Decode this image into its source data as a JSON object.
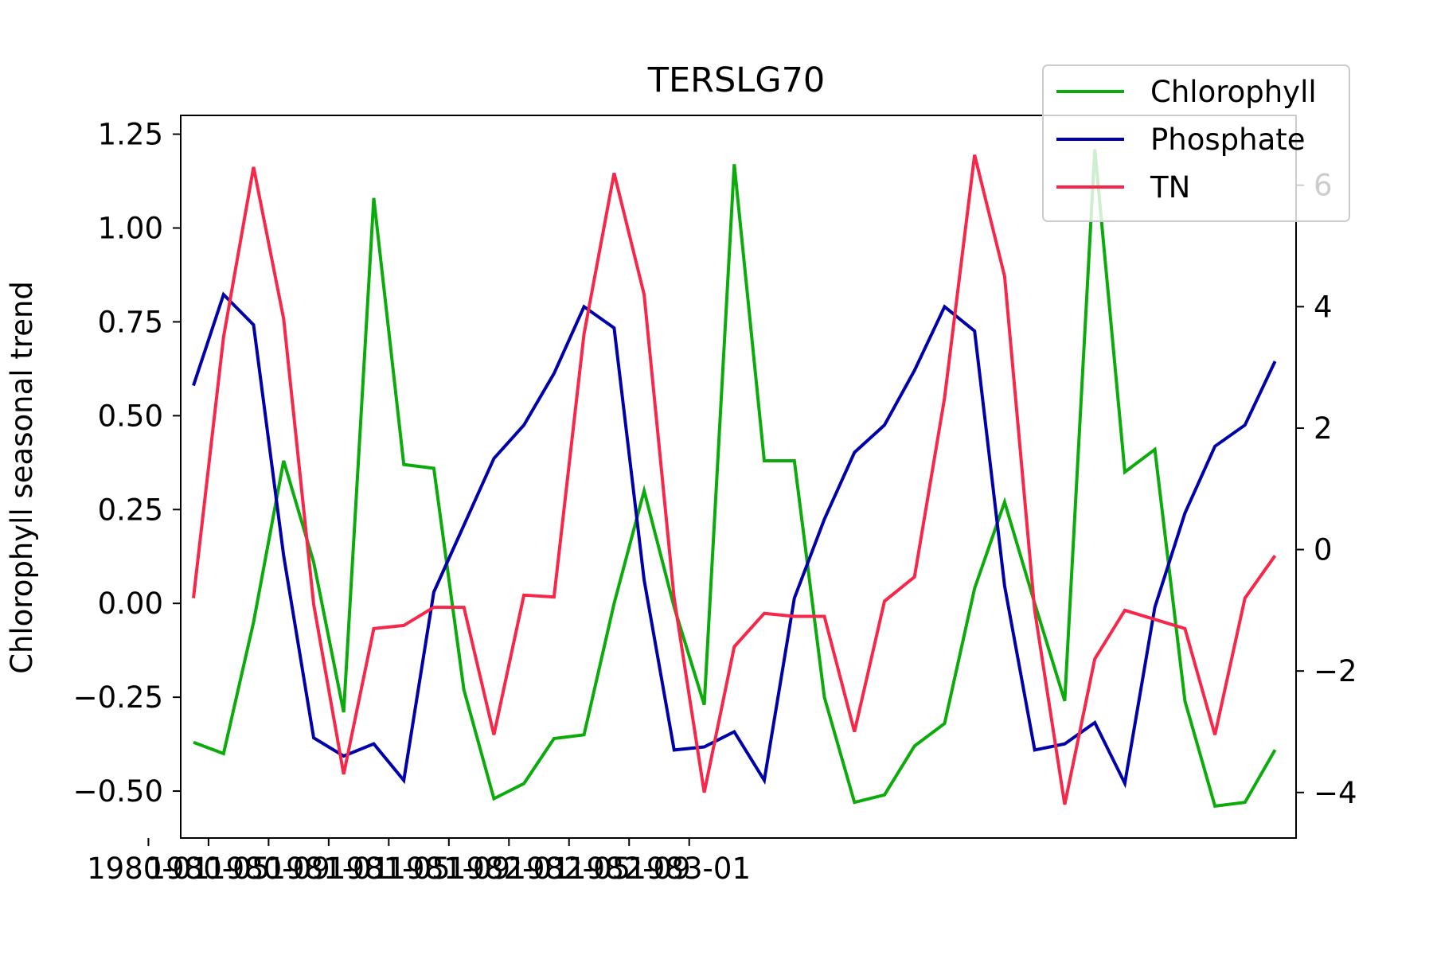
{
  "chart_data": {
    "type": "line",
    "title": "TERSLG70",
    "ylabel": "Chlorophyll seasonal trend",
    "y2label": "",
    "xlabel": "",
    "x": [
      "1980-04",
      "1980-06",
      "1980-08",
      "1980-10",
      "1980-12",
      "1981-02",
      "1981-04",
      "1981-06",
      "1981-08",
      "1981-10",
      "1981-12",
      "1982-02",
      "1982-04",
      "1982-06",
      "1982-08",
      "1982-10",
      "1982-12",
      "1983-02",
      "1983-04",
      "1983-06",
      "1983-08",
      "1983-10",
      "1983-12",
      "1984-02",
      "1984-04",
      "1984-06",
      "1984-08",
      "1984-10",
      "1984-12",
      "1985-02",
      "1985-04",
      "1985-06",
      "1985-08",
      "1985-10",
      "1985-12",
      "1986-02",
      "1986-04"
    ],
    "x_tick_labels": [
      "1980-01",
      "1980-05",
      "1980-09",
      "1981-01",
      "1981-05",
      "1981-09",
      "1982-01",
      "1982-05",
      "1982-09",
      "1983-01"
    ],
    "ylim_left": [
      -0.625,
      1.3
    ],
    "yticks_left": [
      -0.5,
      -0.25,
      0.0,
      0.25,
      0.5,
      0.75,
      1.0,
      1.25
    ],
    "ytick_labels_left": [
      "−0.50",
      "−0.25",
      "0.00",
      "0.25",
      "0.50",
      "0.75",
      "1.00",
      "1.25"
    ],
    "ylim_right": [
      -4.75,
      7.15
    ],
    "yticks_right": [
      -4,
      -2,
      0,
      2,
      4,
      6
    ],
    "ytick_labels_right": [
      "−4",
      "−2",
      "0",
      "2",
      "4",
      "6"
    ],
    "legend_position": "top-right",
    "series": [
      {
        "name": "Chlorophyll",
        "axis": "left",
        "color": "#0cab0c",
        "values": [
          -0.37,
          -0.4,
          -0.05,
          0.38,
          0.11,
          -0.29,
          1.08,
          0.37,
          0.36,
          -0.23,
          -0.52,
          -0.48,
          -0.36,
          -0.35,
          0.0,
          0.3,
          -0.01,
          -0.27,
          1.17,
          0.38,
          0.38,
          -0.25,
          -0.53,
          -0.51,
          -0.38,
          -0.32,
          0.04,
          0.27,
          0.0,
          -0.26,
          1.21,
          0.35,
          0.41,
          -0.26,
          -0.54,
          -0.53,
          -0.39
        ]
      },
      {
        "name": "Phosphate",
        "axis": "right",
        "color": "#0000aa",
        "values": [
          2.7,
          4.2,
          3.7,
          -0.1,
          -3.1,
          -3.4,
          -3.2,
          -3.8,
          -0.7,
          0.4,
          1.5,
          2.05,
          2.9,
          4.0,
          3.65,
          -0.5,
          -3.3,
          -3.25,
          -3.0,
          -3.8,
          -0.8,
          0.5,
          1.6,
          2.05,
          2.95,
          4.0,
          3.6,
          -0.6,
          -3.3,
          -3.2,
          -2.85,
          -3.85,
          -0.95,
          0.6,
          1.7,
          2.05,
          3.1
        ]
      },
      {
        "name": "TN",
        "axis": "right",
        "color": "#f7274a",
        "values": [
          -0.8,
          3.5,
          6.3,
          3.8,
          -0.9,
          -3.7,
          -1.3,
          -1.25,
          -0.95,
          -0.95,
          -3.05,
          -0.75,
          -0.78,
          3.55,
          6.2,
          4.2,
          -0.8,
          -4.0,
          -1.6,
          -1.05,
          -1.1,
          -1.1,
          -3.0,
          -0.85,
          -0.45,
          2.5,
          6.5,
          4.5,
          -1.0,
          -4.2,
          -1.8,
          -1.0,
          -1.15,
          -1.3,
          -3.05,
          -0.8,
          -0.1
        ]
      }
    ]
  }
}
